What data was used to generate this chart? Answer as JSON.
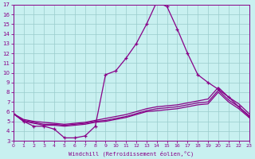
{
  "xlabel": "Windchill (Refroidissement éolien,°C)",
  "xlim": [
    0,
    23
  ],
  "ylim": [
    3,
    17
  ],
  "xticks": [
    0,
    1,
    2,
    3,
    4,
    5,
    6,
    7,
    8,
    9,
    10,
    11,
    12,
    13,
    14,
    15,
    16,
    17,
    18,
    19,
    20,
    21,
    22,
    23
  ],
  "yticks": [
    3,
    4,
    5,
    6,
    7,
    8,
    9,
    10,
    11,
    12,
    13,
    14,
    15,
    16,
    17
  ],
  "bg_color": "#c8f0f0",
  "line_color": "#880088",
  "grid_color": "#99cccc",
  "line1_x": [
    0,
    1,
    2,
    3,
    4,
    5,
    6,
    7,
    8,
    9,
    10,
    11,
    12,
    13,
    14,
    15,
    16,
    17,
    18,
    19,
    20,
    21,
    22,
    23
  ],
  "line1_y": [
    5.8,
    5.0,
    4.5,
    4.5,
    4.2,
    3.3,
    3.3,
    3.5,
    4.5,
    9.8,
    10.2,
    11.5,
    13.0,
    15.0,
    17.3,
    16.8,
    14.5,
    12.0,
    9.8,
    9.0,
    8.3,
    7.5,
    6.5,
    5.5
  ],
  "line2_x": [
    0,
    1,
    2,
    3,
    4,
    5,
    6,
    7,
    8,
    9,
    10,
    11,
    12,
    13,
    14,
    15,
    16,
    17,
    18,
    19,
    20,
    21,
    22,
    23
  ],
  "line2_y": [
    5.8,
    5.2,
    5.0,
    4.9,
    4.8,
    4.7,
    4.8,
    4.9,
    5.1,
    5.3,
    5.5,
    5.7,
    6.0,
    6.3,
    6.5,
    6.6,
    6.7,
    6.9,
    7.1,
    7.3,
    8.5,
    7.5,
    6.8,
    5.8
  ],
  "line3_x": [
    0,
    1,
    2,
    3,
    4,
    5,
    6,
    7,
    8,
    9,
    10,
    11,
    12,
    13,
    14,
    15,
    16,
    17,
    18,
    19,
    20,
    21,
    22,
    23
  ],
  "line3_y": [
    5.8,
    5.1,
    4.9,
    4.7,
    4.7,
    4.6,
    4.7,
    4.8,
    5.0,
    5.1,
    5.3,
    5.5,
    5.8,
    6.1,
    6.3,
    6.4,
    6.5,
    6.7,
    6.9,
    7.0,
    8.2,
    7.2,
    6.5,
    5.6
  ],
  "line4_x": [
    0,
    1,
    2,
    3,
    4,
    5,
    6,
    7,
    8,
    9,
    10,
    11,
    12,
    13,
    14,
    15,
    16,
    17,
    18,
    19,
    20,
    21,
    22,
    23
  ],
  "line4_y": [
    5.8,
    5.0,
    4.8,
    4.6,
    4.6,
    4.5,
    4.6,
    4.7,
    4.9,
    5.0,
    5.2,
    5.4,
    5.7,
    6.0,
    6.1,
    6.2,
    6.3,
    6.5,
    6.7,
    6.8,
    8.0,
    7.0,
    6.3,
    5.4
  ]
}
